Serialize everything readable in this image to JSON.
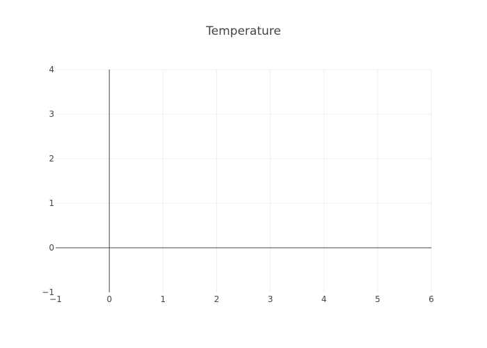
{
  "chart_data": {
    "type": "line",
    "title": "Temperature",
    "xlabel": "",
    "ylabel": "",
    "xlim": [
      -1,
      6
    ],
    "ylim": [
      -1,
      4
    ],
    "x_ticks": [
      -1,
      0,
      1,
      2,
      3,
      4,
      5,
      6
    ],
    "y_ticks": [
      -1,
      0,
      1,
      2,
      3,
      4
    ],
    "x_tick_labels": [
      "−1",
      "0",
      "1",
      "2",
      "3",
      "4",
      "5",
      "6"
    ],
    "y_tick_labels": [
      "−1",
      "0",
      "1",
      "2",
      "3",
      "4"
    ],
    "series": [],
    "grid": true,
    "zero_lines": true,
    "colors": {
      "background": "#ffffff",
      "grid": "#eeeeee",
      "zero_line": "#444444",
      "text": "#444444"
    }
  }
}
